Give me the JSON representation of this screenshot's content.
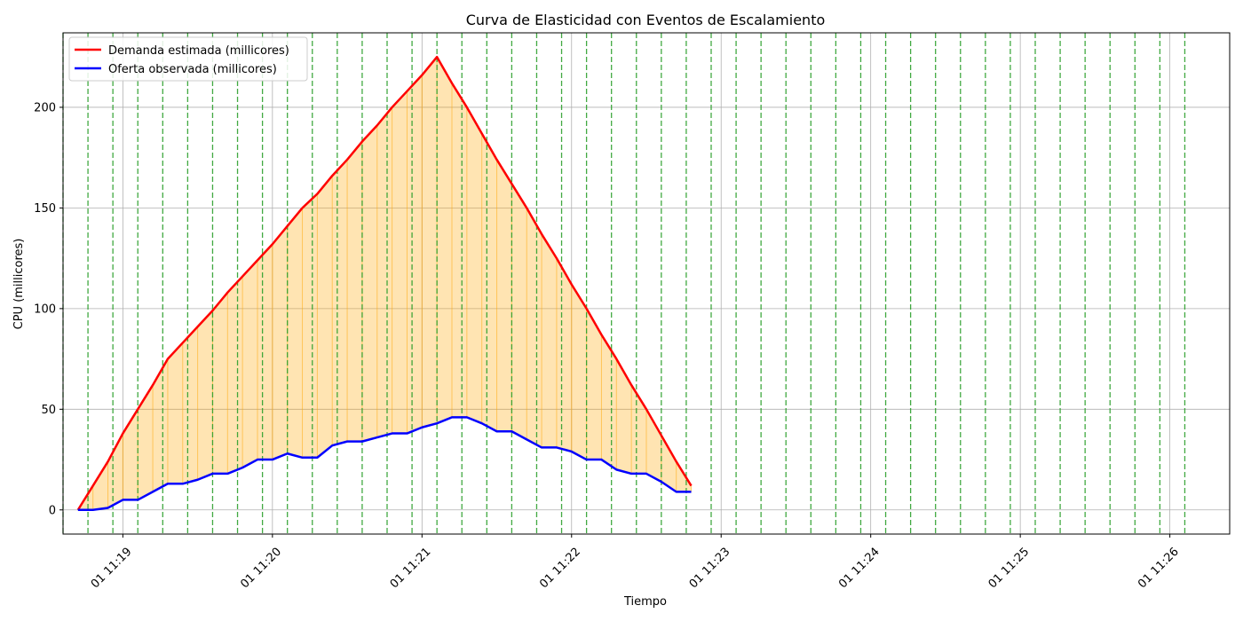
{
  "chart_data": {
    "type": "line",
    "title": "Curva de Elasticidad con Eventos de Escalamiento",
    "xlabel": "Tiempo",
    "ylabel": "CPU (millicores)",
    "x_start": "01 11:18:42",
    "x_step_seconds": 6,
    "xlim": [
      "01 11:18:36",
      "01 11:26:24"
    ],
    "ylim": [
      -12,
      237
    ],
    "xticks": [
      {
        "minute": "11:19",
        "label": "01 11:19"
      },
      {
        "minute": "11:20",
        "label": "01 11:20"
      },
      {
        "minute": "11:21",
        "label": "01 11:21"
      },
      {
        "minute": "11:22",
        "label": "01 11:22"
      },
      {
        "minute": "11:23",
        "label": "01 11:23"
      },
      {
        "minute": "11:24",
        "label": "01 11:24"
      },
      {
        "minute": "11:25",
        "label": "01 11:25"
      },
      {
        "minute": "11:26",
        "label": "01 11:26"
      }
    ],
    "yticks": [
      0,
      50,
      100,
      150,
      200
    ],
    "grid": true,
    "legend_position": "top-left",
    "series": [
      {
        "name": "Demanda estimada (millicores)",
        "color": "#ff0000",
        "values": [
          0,
          12,
          24,
          38,
          50,
          62,
          75,
          83,
          91,
          99,
          108,
          116,
          124,
          132,
          141,
          150,
          157,
          166,
          174,
          183,
          191,
          200,
          208,
          216,
          225,
          212,
          200,
          187,
          174,
          162,
          150,
          137,
          125,
          112,
          100,
          87,
          75,
          62,
          50,
          37,
          24,
          12
        ]
      },
      {
        "name": "Oferta observada (millicores)",
        "color": "#0000ff",
        "values": [
          0,
          0,
          1,
          5,
          5,
          9,
          13,
          13,
          15,
          18,
          18,
          21,
          25,
          25,
          28,
          26,
          26,
          32,
          34,
          34,
          36,
          38,
          38,
          41,
          43,
          46,
          46,
          43,
          39,
          39,
          35,
          31,
          31,
          29,
          25,
          25,
          20,
          18,
          18,
          14,
          9,
          9
        ]
      }
    ],
    "gap_fill_color": "#ffa500",
    "scaling_event_color": "#2ca02c",
    "scaling_events": [
      "11:18:36",
      "11:18:46",
      "11:18:56",
      "11:19:06",
      "11:19:16",
      "11:19:26",
      "11:19:36",
      "11:19:46",
      "11:19:56",
      "11:20:06",
      "11:20:16",
      "11:20:26",
      "11:20:36",
      "11:20:46",
      "11:20:56",
      "11:21:06",
      "11:21:16",
      "11:21:26",
      "11:21:36",
      "11:21:46",
      "11:21:56",
      "11:22:06",
      "11:22:16",
      "11:22:26",
      "11:22:36",
      "11:22:46",
      "11:22:56",
      "11:23:06",
      "11:23:16",
      "11:23:26",
      "11:23:36",
      "11:23:46",
      "11:23:56",
      "11:24:06",
      "11:24:16",
      "11:24:26",
      "11:24:36",
      "11:24:46",
      "11:24:56",
      "11:25:06",
      "11:25:16",
      "11:25:26",
      "11:25:36",
      "11:25:46",
      "11:25:56",
      "11:26:06"
    ]
  }
}
